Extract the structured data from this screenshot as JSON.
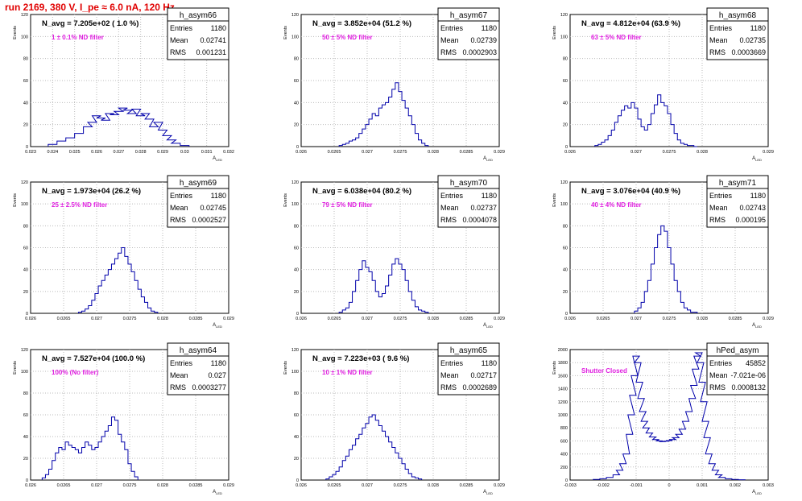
{
  "page": {
    "title": "run 2169,   380 V, I_pe ≈ 6.0 nA, 120 Hz"
  },
  "axis_labels": {
    "y": "Events",
    "x": "A",
    "x_sub": "LED"
  },
  "chart_data": [
    {
      "type": "bar",
      "name": "h_asym66",
      "stats": {
        "entries_label": "Entries",
        "entries": "1180",
        "mean_label": "Mean",
        "mean": "0.02741",
        "rms_label": "RMS",
        "rms": "0.001231"
      },
      "navg": "N_avg = 7.205e+02 ( 1.0 %)",
      "annotation": "1 ± 0.1% ND filter",
      "xlim": [
        0.023,
        0.032
      ],
      "ylim": [
        0,
        120
      ],
      "xticks": [
        "0.023",
        "0.024",
        "0.025",
        "0.026",
        "0.027",
        "0.028",
        "0.029",
        "0.03",
        "0.031",
        "0.032"
      ],
      "yticks": [
        "0",
        "20",
        "40",
        "60",
        "80",
        "100",
        "120"
      ],
      "x": [
        0.024,
        0.0244,
        0.0248,
        0.0252,
        0.0256,
        0.0258,
        0.026,
        0.0262,
        0.0264,
        0.0266,
        0.0268,
        0.027,
        0.0272,
        0.0274,
        0.0276,
        0.0278,
        0.028,
        0.0282,
        0.0284,
        0.0286,
        0.0288,
        0.029,
        0.0292,
        0.0294,
        0.0296,
        0.03
      ],
      "values": [
        2,
        5,
        8,
        12,
        18,
        22,
        28,
        26,
        24,
        30,
        29,
        32,
        35,
        33,
        30,
        34,
        28,
        30,
        25,
        18,
        22,
        15,
        10,
        6,
        3,
        1
      ]
    },
    {
      "type": "bar",
      "name": "h_asym67",
      "stats": {
        "entries_label": "Entries",
        "entries": "1180",
        "mean_label": "Mean",
        "mean": "0.02739",
        "rms_label": "RMS",
        "rms": "0.0002903"
      },
      "navg": "N_avg = 3.852e+04 (51.2 %)",
      "annotation": "50 ± 5% ND filter",
      "xlim": [
        0.026,
        0.029
      ],
      "ylim": [
        0,
        120
      ],
      "xticks": [
        "0.026",
        "0.0265",
        "0.027",
        "0.0275",
        "0.028",
        "0.0285",
        "0.029"
      ],
      "yticks": [
        "0",
        "20",
        "40",
        "60",
        "80",
        "100",
        "120"
      ],
      "x": [
        0.0266,
        0.02665,
        0.0267,
        0.02675,
        0.0268,
        0.02685,
        0.0269,
        0.02695,
        0.027,
        0.02705,
        0.0271,
        0.02715,
        0.0272,
        0.02725,
        0.0273,
        0.02735,
        0.0274,
        0.02745,
        0.0275,
        0.02755,
        0.0276,
        0.02765,
        0.0277,
        0.02775,
        0.0278,
        0.02785,
        0.0279
      ],
      "values": [
        1,
        2,
        3,
        5,
        6,
        8,
        12,
        16,
        20,
        25,
        30,
        28,
        35,
        38,
        40,
        45,
        52,
        58,
        50,
        42,
        35,
        28,
        20,
        12,
        6,
        3,
        1
      ]
    },
    {
      "type": "bar",
      "name": "h_asym68",
      "stats": {
        "entries_label": "Entries",
        "entries": "1180",
        "mean_label": "Mean",
        "mean": "0.02735",
        "rms_label": "RMS",
        "rms": "0.0003669"
      },
      "navg": "N_avg = 4.812e+04 (63.9 %)",
      "annotation": "63 ± 5% ND filter",
      "xlim": [
        0.026,
        0.029
      ],
      "ylim": [
        0,
        120
      ],
      "xticks": [
        "0.026",
        "0.027",
        "0.0275",
        "0.028",
        "0.029"
      ],
      "yticks": [
        "0",
        "20",
        "40",
        "60",
        "80",
        "100",
        "120"
      ],
      "x": [
        0.0264,
        0.02645,
        0.0265,
        0.02655,
        0.0266,
        0.02665,
        0.0267,
        0.02675,
        0.0268,
        0.02685,
        0.0269,
        0.02695,
        0.027,
        0.02705,
        0.0271,
        0.02715,
        0.0272,
        0.02725,
        0.0273,
        0.02735,
        0.0274,
        0.02745,
        0.0275,
        0.02755,
        0.0276,
        0.02765,
        0.0277,
        0.02775,
        0.0278,
        0.02785,
        0.0279
      ],
      "values": [
        1,
        2,
        4,
        6,
        10,
        15,
        22,
        28,
        33,
        37,
        35,
        40,
        35,
        25,
        18,
        15,
        20,
        30,
        38,
        47,
        40,
        37,
        30,
        20,
        12,
        6,
        3,
        2,
        1,
        1,
        0
      ]
    },
    {
      "type": "bar",
      "name": "h_asym69",
      "stats": {
        "entries_label": "Entries",
        "entries": "1180",
        "mean_label": "Mean",
        "mean": "0.02745",
        "rms_label": "RMS",
        "rms": "0.0002527"
      },
      "navg": "N_avg = 1.973e+04 (26.2 %)",
      "annotation": "25 ± 2.5% ND filter",
      "xlim": [
        0.026,
        0.029
      ],
      "ylim": [
        0,
        120
      ],
      "xticks": [
        "0.026",
        "0.0265",
        "0.027",
        "0.0275",
        "0.028",
        "0.0285",
        "0.029"
      ],
      "yticks": [
        "0",
        "20",
        "40",
        "60",
        "80",
        "100",
        "120"
      ],
      "x": [
        0.02675,
        0.0268,
        0.02685,
        0.0269,
        0.02695,
        0.027,
        0.02705,
        0.0271,
        0.02715,
        0.0272,
        0.02725,
        0.0273,
        0.02735,
        0.0274,
        0.02745,
        0.0275,
        0.02755,
        0.0276,
        0.02765,
        0.0277,
        0.02775,
        0.0278,
        0.02785,
        0.0279
      ],
      "values": [
        1,
        2,
        4,
        7,
        12,
        18,
        25,
        30,
        35,
        40,
        45,
        50,
        55,
        60,
        52,
        45,
        38,
        30,
        22,
        15,
        10,
        5,
        2,
        1
      ]
    },
    {
      "type": "bar",
      "name": "h_asym70",
      "stats": {
        "entries_label": "Entries",
        "entries": "1180",
        "mean_label": "Mean",
        "mean": "0.02737",
        "rms_label": "RMS",
        "rms": "0.0004078"
      },
      "navg": "N_avg = 6.038e+04 (80.2 %)",
      "annotation": "79 ± 5% ND filter",
      "xlim": [
        0.026,
        0.029
      ],
      "ylim": [
        0,
        120
      ],
      "xticks": [
        "0.026",
        "0.0265",
        "0.027",
        "0.0275",
        "0.028",
        "0.0285",
        "0.029"
      ],
      "yticks": [
        "0",
        "20",
        "40",
        "60",
        "80",
        "100",
        "120"
      ],
      "x": [
        0.0266,
        0.02665,
        0.0267,
        0.02675,
        0.0268,
        0.02685,
        0.0269,
        0.02695,
        0.027,
        0.02705,
        0.0271,
        0.02715,
        0.0272,
        0.02725,
        0.0273,
        0.02735,
        0.0274,
        0.02745,
        0.0275,
        0.02755,
        0.0276,
        0.02765,
        0.0277,
        0.02775,
        0.0278,
        0.02785,
        0.0279
      ],
      "values": [
        1,
        3,
        5,
        10,
        20,
        30,
        40,
        48,
        42,
        38,
        30,
        20,
        15,
        18,
        25,
        35,
        45,
        50,
        45,
        40,
        30,
        20,
        12,
        6,
        3,
        2,
        1
      ]
    },
    {
      "type": "bar",
      "name": "h_asym71",
      "stats": {
        "entries_label": "Entries",
        "entries": "1180",
        "mean_label": "Mean",
        "mean": "0.02743",
        "rms_label": "RMS",
        "rms": "0.000195"
      },
      "navg": "N_avg = 3.076e+04 (40.9 %)",
      "annotation": "40 ± 4% ND filter",
      "xlim": [
        0.026,
        0.029
      ],
      "ylim": [
        0,
        120
      ],
      "xticks": [
        "0.026",
        "0.0265",
        "0.027",
        "0.0275",
        "0.028",
        "0.0285",
        "0.029"
      ],
      "yticks": [
        "0",
        "20",
        "40",
        "60",
        "80",
        "100",
        "120"
      ],
      "x": [
        0.027,
        0.02705,
        0.0271,
        0.02715,
        0.0272,
        0.02725,
        0.0273,
        0.02735,
        0.0274,
        0.02745,
        0.0275,
        0.02755,
        0.0276,
        0.02765,
        0.0277,
        0.02775,
        0.0278,
        0.02785,
        0.0279
      ],
      "values": [
        2,
        5,
        10,
        20,
        30,
        45,
        60,
        72,
        80,
        75,
        60,
        45,
        30,
        20,
        10,
        5,
        3,
        1,
        1
      ]
    },
    {
      "type": "bar",
      "name": "h_asym64",
      "stats": {
        "entries_label": "Entries",
        "entries": "1180",
        "mean_label": "Mean",
        "mean": "0.027",
        "rms_label": "RMS",
        "rms": "0.0003277"
      },
      "navg": "N_avg = 7.527e+04 (100.0 %)",
      "annotation": "100% (No filter)",
      "xlim": [
        0.026,
        0.029
      ],
      "ylim": [
        0,
        120
      ],
      "xticks": [
        "0.026",
        "0.0265",
        "0.027",
        "0.0275",
        "0.028",
        "0.0285",
        "0.029"
      ],
      "yticks": [
        "0",
        "20",
        "40",
        "60",
        "80",
        "100",
        "120"
      ],
      "x": [
        0.0262,
        0.02625,
        0.0263,
        0.02635,
        0.0264,
        0.02645,
        0.0265,
        0.02655,
        0.0266,
        0.02665,
        0.0267,
        0.02675,
        0.0268,
        0.02685,
        0.0269,
        0.02695,
        0.027,
        0.02705,
        0.0271,
        0.02715,
        0.0272,
        0.02725,
        0.0273,
        0.02735,
        0.0274,
        0.02745,
        0.0275,
        0.02755,
        0.0276
      ],
      "values": [
        2,
        5,
        10,
        18,
        25,
        30,
        28,
        35,
        32,
        30,
        28,
        25,
        30,
        35,
        32,
        28,
        30,
        35,
        40,
        45,
        50,
        58,
        55,
        42,
        35,
        28,
        15,
        8,
        3
      ]
    },
    {
      "type": "bar",
      "name": "h_asym65",
      "stats": {
        "entries_label": "Entries",
        "entries": "1180",
        "mean_label": "Mean",
        "mean": "0.02717",
        "rms_label": "RMS",
        "rms": "0.0002689"
      },
      "navg": "N_avg = 7.223e+03 ( 9.6 %)",
      "annotation": "10 ± 1% ND filter",
      "xlim": [
        0.026,
        0.029
      ],
      "ylim": [
        0,
        120
      ],
      "xticks": [
        "0.026",
        "0.0265",
        "0.027",
        "0.0275",
        "0.028",
        "0.0285",
        "0.029"
      ],
      "yticks": [
        "0",
        "20",
        "40",
        "60",
        "80",
        "100",
        "120"
      ],
      "x": [
        0.0264,
        0.02645,
        0.0265,
        0.02655,
        0.0266,
        0.02665,
        0.0267,
        0.02675,
        0.0268,
        0.02685,
        0.0269,
        0.02695,
        0.027,
        0.02705,
        0.0271,
        0.02715,
        0.0272,
        0.02725,
        0.0273,
        0.02735,
        0.0274,
        0.02745,
        0.0275,
        0.02755,
        0.0276,
        0.02765,
        0.0277,
        0.02775,
        0.0278
      ],
      "values": [
        1,
        3,
        5,
        8,
        12,
        18,
        22,
        28,
        32,
        38,
        42,
        48,
        52,
        58,
        60,
        55,
        50,
        45,
        40,
        35,
        30,
        25,
        20,
        15,
        10,
        6,
        3,
        2,
        1
      ]
    },
    {
      "type": "bar",
      "name": "hPed_asym",
      "stats": {
        "entries_label": "Entries",
        "entries": "45852",
        "mean_label": "Mean",
        "mean": "-7.021e-06",
        "rms_label": "RMS",
        "rms": "0.0008132"
      },
      "navg": "",
      "annotation": "Shutter Closed",
      "xlim": [
        -0.003,
        0.003
      ],
      "ylim": [
        0,
        2000
      ],
      "xticks": [
        "-0.003",
        "-0.002",
        "-0.001",
        "0",
        "0.001",
        "0.002",
        "0.003"
      ],
      "yticks": [
        "0",
        "200",
        "400",
        "600",
        "800",
        "1000",
        "1200",
        "1400",
        "1600",
        "1800",
        "2000"
      ],
      "x": [
        -0.0022,
        -0.002,
        -0.0018,
        -0.0016,
        -0.0015,
        -0.0014,
        -0.0013,
        -0.0012,
        -0.00115,
        -0.0011,
        -0.00105,
        -0.001,
        -0.00095,
        -0.0009,
        -0.00085,
        -0.0008,
        -0.00075,
        -0.0007,
        -0.0006,
        -0.0005,
        -0.0004,
        -0.0003,
        -0.0002,
        -0.0001,
        0.0,
        0.0001,
        0.0002,
        0.0003,
        0.0004,
        0.0005,
        0.0006,
        0.0007,
        0.00075,
        0.0008,
        0.00085,
        0.0009,
        0.00095,
        0.001,
        0.00105,
        0.0011,
        0.00115,
        0.0012,
        0.0013,
        0.0014,
        0.0015,
        0.0016,
        0.0018,
        0.002,
        0.0022
      ],
      "values": [
        10,
        20,
        40,
        80,
        150,
        250,
        400,
        700,
        1000,
        1300,
        1600,
        1900,
        1800,
        1500,
        1250,
        1050,
        900,
        800,
        720,
        660,
        620,
        600,
        590,
        595,
        605,
        620,
        650,
        700,
        780,
        900,
        1050,
        1250,
        1450,
        1700,
        1900,
        1950,
        1800,
        1500,
        1200,
        900,
        650,
        400,
        250,
        150,
        80,
        40,
        20,
        10,
        5
      ]
    }
  ]
}
